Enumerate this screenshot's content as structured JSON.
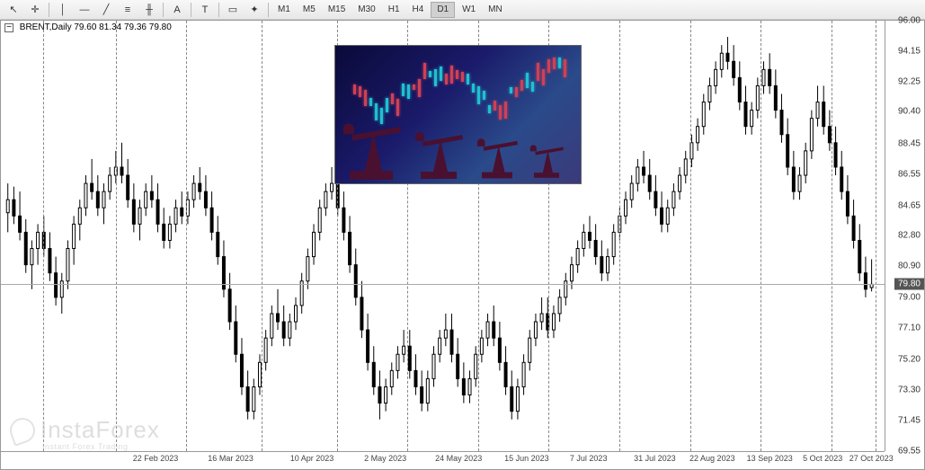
{
  "toolbar": {
    "tools": [
      {
        "name": "cursor-icon",
        "glyph": "↖"
      },
      {
        "name": "crosshair-icon",
        "glyph": "✛"
      },
      {
        "sep": true
      },
      {
        "name": "vertical-line-icon",
        "glyph": "│"
      },
      {
        "name": "horizontal-line-icon",
        "glyph": "—"
      },
      {
        "name": "trendline-icon",
        "glyph": "╱"
      },
      {
        "name": "channel-icon",
        "glyph": "≡"
      },
      {
        "name": "fibonacci-icon",
        "glyph": "╫"
      },
      {
        "sep": true
      },
      {
        "name": "text-icon",
        "glyph": "A"
      },
      {
        "sep": true
      },
      {
        "name": "label-icon",
        "glyph": "T"
      },
      {
        "sep": true
      },
      {
        "name": "rect-icon",
        "glyph": "▭"
      },
      {
        "name": "shapes-icon",
        "glyph": "✦"
      },
      {
        "sep": true
      }
    ],
    "timeframes": [
      {
        "label": "M1",
        "active": false
      },
      {
        "label": "M5",
        "active": false
      },
      {
        "label": "M15",
        "active": false
      },
      {
        "label": "M30",
        "active": false
      },
      {
        "label": "H1",
        "active": false
      },
      {
        "label": "H4",
        "active": false
      },
      {
        "label": "D1",
        "active": true
      },
      {
        "label": "W1",
        "active": false
      },
      {
        "label": "MN",
        "active": false
      }
    ]
  },
  "chart": {
    "symbol_timeframe": "BRENT,Daily",
    "ohlc": "79.60 81.34 79.36 79.80",
    "current_price": "79.80",
    "current_price_y_pct": 62.2,
    "y_axis": {
      "min": 69.55,
      "max": 96.0,
      "labels": [
        {
          "text": "96.00",
          "value": 96.0
        },
        {
          "text": "94.15",
          "value": 94.15
        },
        {
          "text": "92.25",
          "value": 92.25
        },
        {
          "text": "90.40",
          "value": 90.4
        },
        {
          "text": "88.45",
          "value": 88.45
        },
        {
          "text": "86.55",
          "value": 86.55
        },
        {
          "text": "84.65",
          "value": 84.65
        },
        {
          "text": "82.80",
          "value": 82.8
        },
        {
          "text": "80.90",
          "value": 80.9
        },
        {
          "text": "79.00",
          "value": 79.0
        },
        {
          "text": "77.10",
          "value": 77.1
        },
        {
          "text": "75.20",
          "value": 75.2
        },
        {
          "text": "73.30",
          "value": 73.3
        },
        {
          "text": "71.45",
          "value": 71.45
        },
        {
          "text": "69.55",
          "value": 69.55
        }
      ]
    },
    "x_axis": {
      "labels": [
        {
          "text": "22 Feb 2023",
          "pct": 17.5
        },
        {
          "text": "16 Mar 2023",
          "pct": 26.0
        },
        {
          "text": "10 Apr 2023",
          "pct": 35.2
        },
        {
          "text": "2 May 2023",
          "pct": 43.5
        },
        {
          "text": "24 May 2023",
          "pct": 51.8
        },
        {
          "text": "15 Jun 2023",
          "pct": 59.5
        },
        {
          "text": "7 Jul 2023",
          "pct": 66.5
        },
        {
          "text": "31 Jul 2023",
          "pct": 74.0
        },
        {
          "text": "22 Aug 2023",
          "pct": 80.5
        },
        {
          "text": "13 Sep 2023",
          "pct": 87.0
        },
        {
          "text": "5 Oct 2023",
          "pct": 93.0
        },
        {
          "text": "27 Oct 2023",
          "pct": 98.5
        }
      ]
    },
    "vertical_gridlines_pct": [
      4.8,
      13.0,
      21.0,
      29.5,
      38.0,
      46.0,
      54.0,
      62.0,
      70.0,
      78.0,
      86.0,
      94.0,
      99.0
    ],
    "candle_color": "#000000",
    "bg_color": "#ffffff",
    "candles": [
      {
        "o": 84.2,
        "h": 86.0,
        "l": 83.0,
        "c": 85.0
      },
      {
        "o": 85.0,
        "h": 85.8,
        "l": 83.5,
        "c": 84.0
      },
      {
        "o": 84.0,
        "h": 85.5,
        "l": 82.5,
        "c": 83.0
      },
      {
        "o": 83.0,
        "h": 83.8,
        "l": 80.5,
        "c": 81.0
      },
      {
        "o": 81.0,
        "h": 82.5,
        "l": 79.5,
        "c": 82.0
      },
      {
        "o": 82.0,
        "h": 83.5,
        "l": 81.0,
        "c": 83.0
      },
      {
        "o": 83.0,
        "h": 84.0,
        "l": 81.5,
        "c": 82.0
      },
      {
        "o": 82.0,
        "h": 83.0,
        "l": 80.0,
        "c": 80.5
      },
      {
        "o": 80.5,
        "h": 81.5,
        "l": 78.5,
        "c": 79.0
      },
      {
        "o": 79.0,
        "h": 80.5,
        "l": 78.0,
        "c": 80.0
      },
      {
        "o": 80.0,
        "h": 82.5,
        "l": 79.5,
        "c": 82.0
      },
      {
        "o": 82.0,
        "h": 84.0,
        "l": 81.0,
        "c": 83.5
      },
      {
        "o": 83.5,
        "h": 85.0,
        "l": 82.5,
        "c": 84.5
      },
      {
        "o": 84.5,
        "h": 86.5,
        "l": 84.0,
        "c": 86.0
      },
      {
        "o": 86.0,
        "h": 87.5,
        "l": 85.0,
        "c": 85.5
      },
      {
        "o": 85.5,
        "h": 86.5,
        "l": 84.0,
        "c": 84.5
      },
      {
        "o": 84.5,
        "h": 86.0,
        "l": 83.5,
        "c": 85.5
      },
      {
        "o": 85.5,
        "h": 87.0,
        "l": 85.0,
        "c": 86.5
      },
      {
        "o": 86.5,
        "h": 88.0,
        "l": 86.0,
        "c": 87.0
      },
      {
        "o": 87.0,
        "h": 88.5,
        "l": 86.0,
        "c": 86.5
      },
      {
        "o": 86.5,
        "h": 87.5,
        "l": 84.5,
        "c": 85.0
      },
      {
        "o": 85.0,
        "h": 86.0,
        "l": 83.0,
        "c": 83.5
      },
      {
        "o": 83.5,
        "h": 85.0,
        "l": 82.5,
        "c": 84.5
      },
      {
        "o": 84.5,
        "h": 86.0,
        "l": 84.0,
        "c": 85.5
      },
      {
        "o": 85.5,
        "h": 86.5,
        "l": 84.5,
        "c": 85.0
      },
      {
        "o": 85.0,
        "h": 86.0,
        "l": 83.0,
        "c": 83.5
      },
      {
        "o": 83.5,
        "h": 84.5,
        "l": 82.0,
        "c": 82.5
      },
      {
        "o": 82.5,
        "h": 84.0,
        "l": 82.0,
        "c": 83.5
      },
      {
        "o": 83.5,
        "h": 85.0,
        "l": 83.0,
        "c": 84.5
      },
      {
        "o": 84.5,
        "h": 85.5,
        "l": 83.5,
        "c": 84.0
      },
      {
        "o": 84.0,
        "h": 85.5,
        "l": 83.5,
        "c": 85.0
      },
      {
        "o": 85.0,
        "h": 86.5,
        "l": 84.5,
        "c": 86.0
      },
      {
        "o": 86.0,
        "h": 87.0,
        "l": 85.0,
        "c": 85.5
      },
      {
        "o": 85.5,
        "h": 86.5,
        "l": 84.0,
        "c": 84.5
      },
      {
        "o": 84.5,
        "h": 85.5,
        "l": 82.5,
        "c": 83.0
      },
      {
        "o": 83.0,
        "h": 84.0,
        "l": 81.0,
        "c": 81.5
      },
      {
        "o": 81.5,
        "h": 82.5,
        "l": 79.0,
        "c": 79.5
      },
      {
        "o": 79.5,
        "h": 80.5,
        "l": 77.0,
        "c": 77.5
      },
      {
        "o": 77.5,
        "h": 78.5,
        "l": 75.0,
        "c": 75.5
      },
      {
        "o": 75.5,
        "h": 76.5,
        "l": 73.0,
        "c": 73.5
      },
      {
        "o": 73.5,
        "h": 74.5,
        "l": 71.5,
        "c": 72.0
      },
      {
        "o": 72.0,
        "h": 74.0,
        "l": 71.5,
        "c": 73.5
      },
      {
        "o": 73.5,
        "h": 75.5,
        "l": 73.0,
        "c": 75.0
      },
      {
        "o": 75.0,
        "h": 77.0,
        "l": 74.5,
        "c": 76.5
      },
      {
        "o": 76.5,
        "h": 78.5,
        "l": 76.0,
        "c": 78.0
      },
      {
        "o": 78.0,
        "h": 79.5,
        "l": 77.0,
        "c": 77.5
      },
      {
        "o": 77.5,
        "h": 78.5,
        "l": 76.0,
        "c": 76.5
      },
      {
        "o": 76.5,
        "h": 78.0,
        "l": 76.0,
        "c": 77.5
      },
      {
        "o": 77.5,
        "h": 79.0,
        "l": 77.0,
        "c": 78.5
      },
      {
        "o": 78.5,
        "h": 80.5,
        "l": 78.0,
        "c": 80.0
      },
      {
        "o": 80.0,
        "h": 82.0,
        "l": 79.5,
        "c": 81.5
      },
      {
        "o": 81.5,
        "h": 83.5,
        "l": 81.0,
        "c": 83.0
      },
      {
        "o": 83.0,
        "h": 85.0,
        "l": 82.5,
        "c": 84.5
      },
      {
        "o": 84.5,
        "h": 86.0,
        "l": 84.0,
        "c": 85.5
      },
      {
        "o": 85.5,
        "h": 87.0,
        "l": 85.0,
        "c": 86.0
      },
      {
        "o": 86.0,
        "h": 87.0,
        "l": 84.0,
        "c": 84.5
      },
      {
        "o": 84.5,
        "h": 85.5,
        "l": 82.5,
        "c": 83.0
      },
      {
        "o": 83.0,
        "h": 84.0,
        "l": 80.5,
        "c": 81.0
      },
      {
        "o": 81.0,
        "h": 82.0,
        "l": 78.5,
        "c": 79.0
      },
      {
        "o": 79.0,
        "h": 80.0,
        "l": 76.5,
        "c": 77.0
      },
      {
        "o": 77.0,
        "h": 78.0,
        "l": 74.5,
        "c": 75.0
      },
      {
        "o": 75.0,
        "h": 76.0,
        "l": 73.0,
        "c": 73.5
      },
      {
        "o": 73.5,
        "h": 74.5,
        "l": 71.5,
        "c": 72.5
      },
      {
        "o": 72.5,
        "h": 74.0,
        "l": 72.0,
        "c": 73.5
      },
      {
        "o": 73.5,
        "h": 75.0,
        "l": 73.0,
        "c": 74.5
      },
      {
        "o": 74.5,
        "h": 76.0,
        "l": 74.0,
        "c": 75.5
      },
      {
        "o": 75.5,
        "h": 77.0,
        "l": 75.0,
        "c": 76.0
      },
      {
        "o": 76.0,
        "h": 77.0,
        "l": 74.0,
        "c": 74.5
      },
      {
        "o": 74.5,
        "h": 75.5,
        "l": 73.0,
        "c": 73.5
      },
      {
        "o": 73.5,
        "h": 74.5,
        "l": 72.0,
        "c": 72.5
      },
      {
        "o": 72.5,
        "h": 74.5,
        "l": 72.0,
        "c": 74.0
      },
      {
        "o": 74.0,
        "h": 76.0,
        "l": 73.5,
        "c": 75.5
      },
      {
        "o": 75.5,
        "h": 77.0,
        "l": 75.0,
        "c": 76.5
      },
      {
        "o": 76.5,
        "h": 78.0,
        "l": 76.0,
        "c": 77.0
      },
      {
        "o": 77.0,
        "h": 78.0,
        "l": 75.0,
        "c": 75.5
      },
      {
        "o": 75.5,
        "h": 76.5,
        "l": 73.5,
        "c": 74.0
      },
      {
        "o": 74.0,
        "h": 75.0,
        "l": 72.5,
        "c": 73.0
      },
      {
        "o": 73.0,
        "h": 74.5,
        "l": 72.5,
        "c": 74.0
      },
      {
        "o": 74.0,
        "h": 76.0,
        "l": 73.5,
        "c": 75.5
      },
      {
        "o": 75.5,
        "h": 77.0,
        "l": 75.0,
        "c": 76.5
      },
      {
        "o": 76.5,
        "h": 78.0,
        "l": 76.0,
        "c": 77.5
      },
      {
        "o": 77.5,
        "h": 78.5,
        "l": 76.0,
        "c": 76.5
      },
      {
        "o": 76.5,
        "h": 77.5,
        "l": 74.5,
        "c": 75.0
      },
      {
        "o": 75.0,
        "h": 76.0,
        "l": 73.0,
        "c": 73.5
      },
      {
        "o": 73.5,
        "h": 74.5,
        "l": 71.5,
        "c": 72.0
      },
      {
        "o": 72.0,
        "h": 74.0,
        "l": 71.5,
        "c": 73.5
      },
      {
        "o": 73.5,
        "h": 75.5,
        "l": 73.0,
        "c": 75.0
      },
      {
        "o": 75.0,
        "h": 77.0,
        "l": 74.5,
        "c": 76.5
      },
      {
        "o": 76.5,
        "h": 78.0,
        "l": 76.0,
        "c": 77.5
      },
      {
        "o": 77.5,
        "h": 79.0,
        "l": 77.0,
        "c": 78.0
      },
      {
        "o": 78.0,
        "h": 79.0,
        "l": 76.5,
        "c": 77.0
      },
      {
        "o": 77.0,
        "h": 78.5,
        "l": 76.5,
        "c": 78.0
      },
      {
        "o": 78.0,
        "h": 79.5,
        "l": 77.5,
        "c": 79.0
      },
      {
        "o": 79.0,
        "h": 80.5,
        "l": 78.5,
        "c": 80.0
      },
      {
        "o": 80.0,
        "h": 81.5,
        "l": 79.5,
        "c": 81.0
      },
      {
        "o": 81.0,
        "h": 82.5,
        "l": 80.5,
        "c": 82.0
      },
      {
        "o": 82.0,
        "h": 83.5,
        "l": 81.5,
        "c": 83.0
      },
      {
        "o": 83.0,
        "h": 84.0,
        "l": 82.0,
        "c": 82.5
      },
      {
        "o": 82.5,
        "h": 83.5,
        "l": 81.0,
        "c": 81.5
      },
      {
        "o": 81.5,
        "h": 82.5,
        "l": 80.0,
        "c": 80.5
      },
      {
        "o": 80.5,
        "h": 82.0,
        "l": 80.0,
        "c": 81.5
      },
      {
        "o": 81.5,
        "h": 83.5,
        "l": 81.0,
        "c": 83.0
      },
      {
        "o": 83.0,
        "h": 84.5,
        "l": 82.5,
        "c": 84.0
      },
      {
        "o": 84.0,
        "h": 85.5,
        "l": 83.5,
        "c": 85.0
      },
      {
        "o": 85.0,
        "h": 86.5,
        "l": 84.5,
        "c": 86.0
      },
      {
        "o": 86.0,
        "h": 87.5,
        "l": 85.5,
        "c": 87.0
      },
      {
        "o": 87.0,
        "h": 88.0,
        "l": 86.0,
        "c": 86.5
      },
      {
        "o": 86.5,
        "h": 87.5,
        "l": 85.0,
        "c": 85.5
      },
      {
        "o": 85.5,
        "h": 86.5,
        "l": 84.0,
        "c": 84.5
      },
      {
        "o": 84.5,
        "h": 85.5,
        "l": 83.0,
        "c": 83.5
      },
      {
        "o": 83.5,
        "h": 85.0,
        "l": 83.0,
        "c": 84.5
      },
      {
        "o": 84.5,
        "h": 86.0,
        "l": 84.0,
        "c": 85.5
      },
      {
        "o": 85.5,
        "h": 87.0,
        "l": 85.0,
        "c": 86.5
      },
      {
        "o": 86.5,
        "h": 88.0,
        "l": 86.0,
        "c": 87.5
      },
      {
        "o": 87.5,
        "h": 89.0,
        "l": 87.0,
        "c": 88.5
      },
      {
        "o": 88.5,
        "h": 90.0,
        "l": 88.0,
        "c": 89.5
      },
      {
        "o": 89.5,
        "h": 91.5,
        "l": 89.0,
        "c": 91.0
      },
      {
        "o": 91.0,
        "h": 92.5,
        "l": 90.5,
        "c": 92.0
      },
      {
        "o": 92.0,
        "h": 93.5,
        "l": 91.5,
        "c": 93.0
      },
      {
        "o": 93.0,
        "h": 94.5,
        "l": 92.5,
        "c": 94.0
      },
      {
        "o": 94.0,
        "h": 95.0,
        "l": 93.0,
        "c": 93.5
      },
      {
        "o": 93.5,
        "h": 94.5,
        "l": 92.0,
        "c": 92.5
      },
      {
        "o": 92.5,
        "h": 93.5,
        "l": 90.5,
        "c": 91.0
      },
      {
        "o": 91.0,
        "h": 92.0,
        "l": 89.0,
        "c": 89.5
      },
      {
        "o": 89.5,
        "h": 91.0,
        "l": 89.0,
        "c": 90.5
      },
      {
        "o": 90.5,
        "h": 92.5,
        "l": 90.0,
        "c": 92.0
      },
      {
        "o": 92.0,
        "h": 93.5,
        "l": 91.5,
        "c": 93.0
      },
      {
        "o": 93.0,
        "h": 94.0,
        "l": 91.5,
        "c": 92.0
      },
      {
        "o": 92.0,
        "h": 93.0,
        "l": 90.0,
        "c": 90.5
      },
      {
        "o": 90.5,
        "h": 91.5,
        "l": 88.5,
        "c": 89.0
      },
      {
        "o": 89.0,
        "h": 90.0,
        "l": 86.5,
        "c": 87.0
      },
      {
        "o": 87.0,
        "h": 88.0,
        "l": 85.0,
        "c": 85.5
      },
      {
        "o": 85.5,
        "h": 87.0,
        "l": 85.0,
        "c": 86.5
      },
      {
        "o": 86.5,
        "h": 88.5,
        "l": 86.0,
        "c": 88.0
      },
      {
        "o": 88.0,
        "h": 90.5,
        "l": 87.5,
        "c": 90.0
      },
      {
        "o": 90.0,
        "h": 92.0,
        "l": 89.5,
        "c": 91.0
      },
      {
        "o": 91.0,
        "h": 92.0,
        "l": 89.0,
        "c": 89.5
      },
      {
        "o": 89.5,
        "h": 90.5,
        "l": 88.0,
        "c": 88.5
      },
      {
        "o": 88.5,
        "h": 89.5,
        "l": 86.5,
        "c": 87.0
      },
      {
        "o": 87.0,
        "h": 88.0,
        "l": 85.0,
        "c": 85.5
      },
      {
        "o": 85.5,
        "h": 86.5,
        "l": 83.5,
        "c": 84.0
      },
      {
        "o": 84.0,
        "h": 85.0,
        "l": 82.0,
        "c": 82.5
      },
      {
        "o": 82.5,
        "h": 83.5,
        "l": 80.0,
        "c": 80.5
      },
      {
        "o": 80.5,
        "h": 81.5,
        "l": 79.0,
        "c": 79.5
      },
      {
        "o": 79.6,
        "h": 81.34,
        "l": 79.36,
        "c": 79.8
      }
    ]
  },
  "watermark": {
    "brand": "InstaForex",
    "tagline": "Instant Forex Trading"
  },
  "embedded_image": {
    "description": "Oil pumpjacks silhouette against blue financial chart background",
    "bg_colors": [
      "#0a0a3a",
      "#1a1a6a",
      "#2a4a8a"
    ],
    "pump_color": "#4a1030",
    "candle_red": "#d04055",
    "candle_cyan": "#20c0d0"
  }
}
